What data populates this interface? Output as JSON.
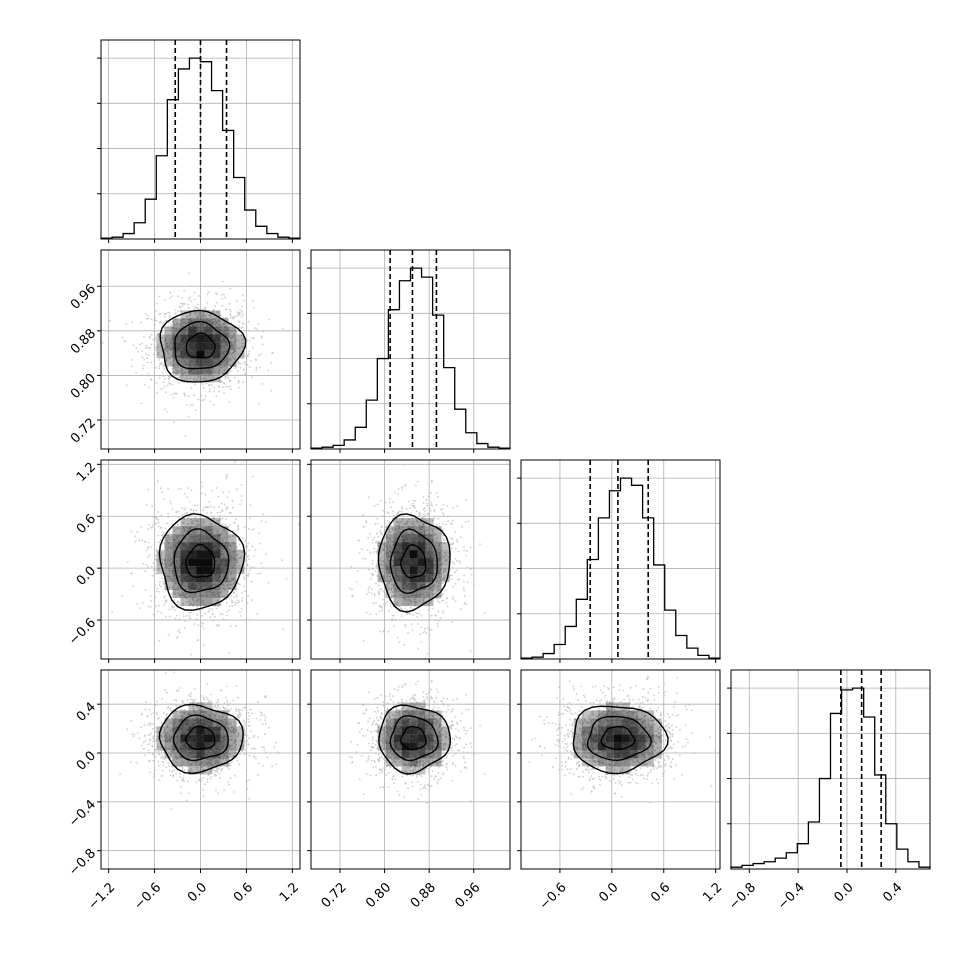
{
  "chart_data": {
    "type": "corner",
    "title": "",
    "params": [
      {
        "range": [
          -1.3,
          1.3
        ],
        "ticks": [
          -1.2,
          -0.6,
          0.0,
          0.6,
          1.2
        ],
        "tick_labels": [
          "−1.2",
          "−0.6",
          "0.0",
          "0.6",
          "1.2"
        ],
        "quantiles": [
          -0.33,
          0.0,
          0.34
        ],
        "median": 0.0,
        "sigma": 0.34,
        "hist_counts": [
          0.5,
          1,
          3,
          9,
          22,
          46,
          77,
          94,
          100,
          98,
          82,
          60,
          34,
          16,
          7,
          3,
          1,
          0.5
        ],
        "hist_ymax": 110
      },
      {
        "range": [
          0.668,
          1.025
        ],
        "ticks": [
          0.72,
          0.8,
          0.88,
          0.96
        ],
        "tick_labels": [
          "0.72",
          "0.80",
          "0.88",
          "0.96"
        ],
        "quantiles": [
          0.81,
          0.85,
          0.893
        ],
        "median": 0.852,
        "sigma": 0.04,
        "hist_counts": [
          0.5,
          1,
          2,
          5,
          12,
          27,
          50,
          77,
          93,
          100,
          95,
          74,
          45,
          22,
          9,
          3,
          1,
          0.5
        ],
        "hist_ymax": 110
      },
      {
        "range": [
          -1.05,
          1.25
        ],
        "ticks": [
          -0.6,
          0.0,
          0.6,
          1.2
        ],
        "tick_labels": [
          "−0.6",
          "0.0",
          "0.6",
          "1.2"
        ],
        "quantiles": [
          -0.25,
          0.07,
          0.42
        ],
        "median": 0.07,
        "sigma": 0.34,
        "hist_counts": [
          0.5,
          1,
          3,
          8,
          18,
          33,
          55,
          78,
          93,
          100,
          96,
          78,
          52,
          27,
          13,
          6,
          2,
          0.5
        ],
        "hist_ymax": 110
      },
      {
        "range": [
          -0.95,
          0.68
        ],
        "ticks": [
          -0.8,
          -0.4,
          0.0,
          0.4
        ],
        "tick_labels": [
          "−0.8",
          "−0.4",
          "0.0",
          "0.4"
        ],
        "quantiles": [
          -0.05,
          0.12,
          0.28
        ],
        "median": 0.12,
        "sigma": 0.17,
        "hist_counts": [
          1,
          2,
          3,
          4,
          6,
          9,
          14,
          26,
          50,
          86,
          99,
          100,
          84,
          52,
          25,
          11,
          4,
          1
        ],
        "hist_ymax": 110
      }
    ],
    "pairs": [
      {
        "row": 1,
        "col": 0,
        "yticks": [
          0.72,
          0.8,
          0.88,
          0.96
        ],
        "ytick_labels": [
          "0.72",
          "0.80",
          "0.88",
          "0.96"
        ]
      },
      {
        "row": 2,
        "col": 0,
        "yticks": [
          -0.6,
          0.0,
          0.6,
          1.2
        ],
        "ytick_labels": [
          "−0.6",
          "0.0",
          "0.6",
          "1.2"
        ]
      },
      {
        "row": 2,
        "col": 1
      },
      {
        "row": 3,
        "col": 0,
        "yticks": [
          -0.8,
          -0.4,
          0.0,
          0.4
        ],
        "ytick_labels": [
          "−0.8",
          "−0.4",
          "0.0",
          "0.4"
        ]
      },
      {
        "row": 3,
        "col": 1
      },
      {
        "row": 3,
        "col": 2
      }
    ],
    "contour_levels": 3,
    "grid": true,
    "colors": {
      "line": "#000000",
      "points": "#bdbdbd",
      "grid": "#b0b0b0",
      "density": "#000000"
    }
  }
}
